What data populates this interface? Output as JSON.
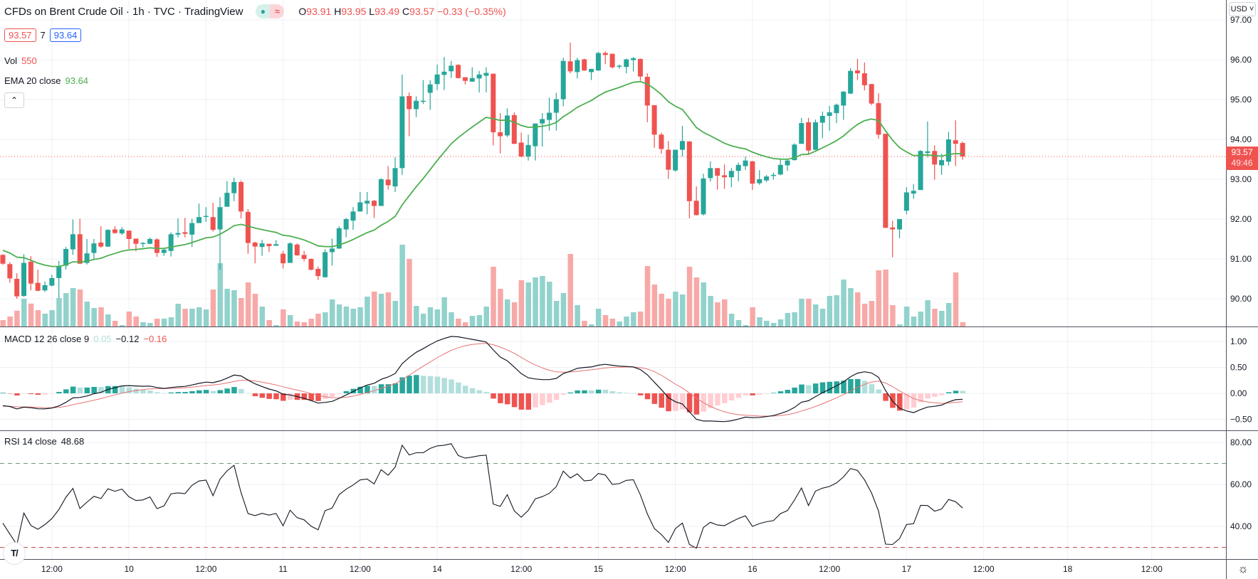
{
  "header": {
    "title": "CFDs on Brent Crude Oil · 1h · TVC · TradingView",
    "status_dot": "●",
    "status_approx": "≈",
    "o_label": "O",
    "o": "93.91",
    "h_label": "H",
    "h": "93.95",
    "l_label": "L",
    "l": "93.49",
    "c_label": "C",
    "c": "93.57",
    "change": "−0.33 (−0.35%)"
  },
  "bid_ask": {
    "bid": "93.57",
    "spread": "7",
    "ask": "93.64"
  },
  "vol_legend": {
    "label": "Vol",
    "value": "550"
  },
  "ema_legend": {
    "label": "EMA 20 close",
    "value": "93.64"
  },
  "macd_legend": {
    "label": "MACD 12 26 close 9",
    "hist": "0.05",
    "macd": "−0.12",
    "signal": "−0.16"
  },
  "rsi_legend": {
    "label": "RSI 14 close",
    "value": "48.68"
  },
  "currency_button": "USD ˅",
  "price_tag": {
    "price": "93.57",
    "countdown": "49:46"
  },
  "collapse_icon": "⌃",
  "settings_icon": "☼",
  "logo_text": "TV",
  "colors": {
    "up": "#26a69a",
    "down": "#ef5350",
    "ema": "#4caf50",
    "vol_up": "#92d2cc",
    "vol_down": "#f7a9a7",
    "macd_line": "#131722",
    "signal_line": "#e57373"
  },
  "chart_data": {
    "type": "candlestick",
    "title": "CFDs on Brent Crude Oil · 1h · TVC",
    "price_axis": {
      "ticks": [
        97,
        96,
        95,
        94,
        93,
        92,
        91,
        90
      ],
      "labels": [
        "97.00",
        "96.00",
        "95.00",
        "94.00",
        "93.00",
        "92.00",
        "91.00",
        "90.00"
      ],
      "range": [
        89.3,
        97.5
      ]
    },
    "macd_axis": {
      "ticks": [
        1,
        0.5,
        0,
        -0.5
      ],
      "labels": [
        "1.00",
        "0.50",
        "0.00",
        "−0.50"
      ]
    },
    "rsi_axis": {
      "ticks": [
        80,
        60,
        40
      ],
      "labels": [
        "80.00",
        "60.00",
        "40.00"
      ],
      "upper_band": 70,
      "lower_band": 30
    },
    "time_axis": {
      "labels": [
        "12:00",
        "10",
        "12:00",
        "11",
        "12:00",
        "14",
        "12:00",
        "15",
        "12:00",
        "16",
        "12:00",
        "17",
        "12:00",
        "18",
        "12:00"
      ],
      "bar_index": [
        7,
        18,
        29,
        40,
        51,
        62,
        74,
        85,
        96,
        107,
        118,
        129,
        140,
        152,
        164
      ]
    },
    "current_price": 93.57,
    "ema_period": 20,
    "ema_start": 91.25,
    "macd_params": {
      "fast": 12,
      "slow": 26,
      "signal": 9,
      "seed_fast": 90.95,
      "seed_slow": 91.2,
      "seed_signal": -0.25
    },
    "rsi_params": {
      "period": 14,
      "seed_gain": 0.09,
      "seed_loss": 0.11
    },
    "ohlcv_columns": [
      "open",
      "high",
      "low",
      "close",
      "volume"
    ],
    "ohlcv": [
      [
        91.1,
        91.12,
        90.85,
        90.88,
        810
      ],
      [
        90.87,
        90.92,
        90.4,
        90.51,
        1260
      ],
      [
        90.5,
        90.64,
        90.0,
        90.06,
        2000
      ],
      [
        90.07,
        91.12,
        90.05,
        90.9,
        3500
      ],
      [
        90.93,
        91.07,
        90.21,
        90.38,
        2900
      ],
      [
        90.4,
        90.73,
        90.19,
        90.2,
        2070
      ],
      [
        90.21,
        90.43,
        90.17,
        90.34,
        1620
      ],
      [
        90.33,
        90.6,
        90.31,
        90.52,
        2070
      ],
      [
        90.52,
        90.95,
        90.01,
        90.81,
        3600
      ],
      [
        90.83,
        91.3,
        90.73,
        91.25,
        4230
      ],
      [
        91.24,
        91.99,
        91.1,
        91.62,
        4860
      ],
      [
        91.62,
        92.01,
        90.87,
        90.88,
        4680
      ],
      [
        90.9,
        91.5,
        90.86,
        91.14,
        3150
      ],
      [
        91.15,
        91.5,
        90.98,
        91.39,
        2340
      ],
      [
        91.41,
        91.82,
        91.28,
        91.31,
        2430
      ],
      [
        91.31,
        91.74,
        91.3,
        91.73,
        1530
      ],
      [
        91.74,
        91.82,
        91.63,
        91.65,
        720
      ],
      [
        91.64,
        91.8,
        91.6,
        91.74,
        180
      ],
      [
        91.71,
        91.71,
        91.25,
        91.5,
        1890
      ],
      [
        91.51,
        91.51,
        91.19,
        91.38,
        1260
      ],
      [
        91.39,
        91.42,
        91.29,
        91.4,
        540
      ],
      [
        91.38,
        91.54,
        91.37,
        91.5,
        450
      ],
      [
        91.49,
        91.52,
        91.05,
        91.15,
        990
      ],
      [
        91.15,
        91.25,
        91.08,
        91.23,
        990
      ],
      [
        91.2,
        91.67,
        91.06,
        91.62,
        1170
      ],
      [
        91.61,
        92.02,
        91.54,
        91.65,
        2880
      ],
      [
        91.67,
        92.03,
        91.54,
        91.63,
        2250
      ],
      [
        91.61,
        92.01,
        91.3,
        91.9,
        2250
      ],
      [
        91.9,
        92.39,
        91.9,
        92.05,
        2430
      ],
      [
        92.06,
        92.3,
        91.93,
        92.08,
        2160
      ],
      [
        92.05,
        92.41,
        91.69,
        91.73,
        4680
      ],
      [
        91.74,
        92.55,
        90.73,
        92.3,
        8010
      ],
      [
        92.31,
        92.95,
        92.31,
        92.66,
        4770
      ],
      [
        92.65,
        93.04,
        92.45,
        92.93,
        4590
      ],
      [
        92.93,
        92.97,
        92.02,
        92.19,
        3600
      ],
      [
        92.18,
        92.25,
        91.13,
        91.4,
        5580
      ],
      [
        91.41,
        91.43,
        90.89,
        91.31,
        4140
      ],
      [
        91.3,
        91.48,
        91.08,
        91.39,
        2520
      ],
      [
        91.38,
        91.38,
        91.17,
        91.32,
        810
      ],
      [
        91.33,
        91.47,
        91.33,
        91.37,
        180
      ],
      [
        91.13,
        91.2,
        90.76,
        90.89,
        2160
      ],
      [
        90.9,
        91.42,
        90.9,
        91.39,
        1440
      ],
      [
        91.36,
        91.39,
        91.08,
        91.09,
        630
      ],
      [
        91.1,
        91.2,
        90.94,
        91.0,
        540
      ],
      [
        91.0,
        91.01,
        90.71,
        90.73,
        990
      ],
      [
        90.75,
        90.81,
        90.47,
        90.57,
        1620
      ],
      [
        90.54,
        91.24,
        90.53,
        91.17,
        1800
      ],
      [
        91.17,
        91.51,
        90.83,
        91.26,
        3420
      ],
      [
        91.26,
        91.82,
        91.25,
        91.77,
        2790
      ],
      [
        91.74,
        92.03,
        91.54,
        92.0,
        2520
      ],
      [
        91.96,
        92.3,
        91.73,
        92.19,
        2250
      ],
      [
        92.19,
        92.68,
        92.19,
        92.42,
        2430
      ],
      [
        92.39,
        92.68,
        92.12,
        92.46,
        3780
      ],
      [
        92.46,
        92.48,
        92.03,
        92.33,
        4410
      ],
      [
        92.33,
        93.03,
        92.33,
        93.0,
        4140
      ],
      [
        92.99,
        93.33,
        92.74,
        92.85,
        4320
      ],
      [
        92.82,
        93.55,
        92.68,
        93.28,
        3240
      ],
      [
        93.28,
        95.63,
        93.11,
        95.08,
        10350
      ],
      [
        95.09,
        95.18,
        94.08,
        94.76,
        8550
      ],
      [
        94.76,
        95.08,
        94.56,
        94.97,
        2610
      ],
      [
        94.95,
        95.49,
        94.89,
        94.97,
        1620
      ],
      [
        95.17,
        95.49,
        94.74,
        95.38,
        2430
      ],
      [
        95.39,
        95.88,
        95.24,
        95.63,
        2160
      ],
      [
        95.62,
        96.07,
        95.24,
        95.7,
        3690
      ],
      [
        95.71,
        95.97,
        95.54,
        95.85,
        1800
      ],
      [
        95.87,
        95.89,
        95.53,
        95.54,
        990
      ],
      [
        95.56,
        95.56,
        95.38,
        95.47,
        540
      ],
      [
        95.45,
        95.81,
        95.45,
        95.54,
        1350
      ],
      [
        95.53,
        95.72,
        95.18,
        95.63,
        1440
      ],
      [
        95.6,
        95.81,
        95.18,
        95.67,
        2520
      ],
      [
        95.65,
        95.65,
        93.85,
        94.18,
        7560
      ],
      [
        94.18,
        94.66,
        93.65,
        94.08,
        4770
      ],
      [
        94.1,
        94.78,
        94.06,
        94.6,
        3420
      ],
      [
        94.61,
        94.68,
        93.88,
        93.89,
        3060
      ],
      [
        93.92,
        94.17,
        93.55,
        93.57,
        5850
      ],
      [
        93.57,
        94.12,
        93.47,
        93.86,
        5580
      ],
      [
        93.83,
        94.4,
        93.47,
        94.4,
        6210
      ],
      [
        94.4,
        94.66,
        93.82,
        94.51,
        6390
      ],
      [
        94.49,
        95.05,
        94.22,
        94.67,
        5670
      ],
      [
        94.67,
        95.17,
        94.22,
        95.01,
        3240
      ],
      [
        95.01,
        96.05,
        94.83,
        95.97,
        4230
      ],
      [
        95.96,
        96.43,
        95.66,
        95.71,
        9180
      ],
      [
        95.69,
        96.05,
        95.53,
        95.99,
        2700
      ],
      [
        96.01,
        96.03,
        95.72,
        95.73,
        720
      ],
      [
        95.69,
        95.77,
        95.49,
        95.77,
        270
      ],
      [
        95.73,
        96.2,
        95.72,
        96.17,
        2250
      ],
      [
        96.17,
        96.21,
        95.89,
        96.12,
        1440
      ],
      [
        96.15,
        96.15,
        95.78,
        95.81,
        990
      ],
      [
        95.84,
        95.88,
        95.77,
        95.85,
        630
      ],
      [
        95.82,
        96.03,
        95.66,
        96.01,
        1260
      ],
      [
        95.99,
        96.07,
        95.71,
        96.04,
        1800
      ],
      [
        96.02,
        96.03,
        95.47,
        95.58,
        1890
      ],
      [
        95.57,
        95.66,
        94.43,
        94.85,
        7650
      ],
      [
        94.86,
        94.86,
        93.79,
        94.12,
        5310
      ],
      [
        94.12,
        94.17,
        93.64,
        93.76,
        4140
      ],
      [
        93.74,
        93.96,
        93.01,
        93.24,
        3510
      ],
      [
        93.22,
        93.74,
        93.19,
        93.74,
        4410
      ],
      [
        93.74,
        94.34,
        93.57,
        93.96,
        4050
      ],
      [
        93.95,
        93.95,
        92.02,
        92.45,
        7560
      ],
      [
        92.46,
        92.82,
        92.09,
        92.1,
        6210
      ],
      [
        92.12,
        93.14,
        92.09,
        93.02,
        5580
      ],
      [
        93.03,
        93.45,
        92.94,
        93.28,
        3870
      ],
      [
        93.28,
        93.28,
        92.74,
        93.09,
        3060
      ],
      [
        93.1,
        93.37,
        92.76,
        93.05,
        3420
      ],
      [
        93.05,
        93.28,
        92.8,
        93.21,
        1620
      ],
      [
        93.21,
        93.42,
        92.95,
        93.36,
        810
      ],
      [
        93.33,
        93.57,
        93.23,
        93.47,
        180
      ],
      [
        93.45,
        93.46,
        92.73,
        92.89,
        2430
      ],
      [
        92.9,
        93.23,
        92.86,
        93.0,
        1170
      ],
      [
        92.97,
        93.11,
        92.93,
        93.07,
        720
      ],
      [
        93.09,
        93.17,
        92.99,
        93.11,
        450
      ],
      [
        93.12,
        93.51,
        93.1,
        93.36,
        900
      ],
      [
        93.35,
        93.52,
        93.21,
        93.47,
        1710
      ],
      [
        93.48,
        93.9,
        93.47,
        93.87,
        1800
      ],
      [
        93.89,
        94.54,
        93.89,
        94.41,
        3510
      ],
      [
        94.43,
        94.54,
        93.64,
        93.72,
        3510
      ],
      [
        93.74,
        94.5,
        93.73,
        94.43,
        2790
      ],
      [
        94.42,
        94.7,
        94.03,
        94.59,
        2250
      ],
      [
        94.59,
        94.84,
        94.22,
        94.68,
        3870
      ],
      [
        94.66,
        94.9,
        94.41,
        94.87,
        3960
      ],
      [
        94.85,
        95.21,
        94.49,
        95.2,
        5940
      ],
      [
        95.15,
        95.79,
        95.14,
        95.72,
        4860
      ],
      [
        95.73,
        96.02,
        95.49,
        95.66,
        4320
      ],
      [
        95.66,
        95.93,
        95.23,
        95.36,
        2880
      ],
      [
        95.39,
        95.39,
        94.86,
        94.9,
        3240
      ],
      [
        94.91,
        95.16,
        94.02,
        94.12,
        7110
      ],
      [
        94.14,
        94.14,
        91.78,
        91.78,
        7200
      ],
      [
        91.79,
        91.96,
        91.04,
        91.74,
        2700
      ],
      [
        91.74,
        92.0,
        91.52,
        92.0,
        270
      ],
      [
        92.21,
        92.8,
        92.12,
        92.67,
        2520
      ],
      [
        92.64,
        92.88,
        92.51,
        92.71,
        1260
      ],
      [
        92.73,
        93.73,
        92.73,
        93.71,
        1890
      ],
      [
        93.66,
        94.45,
        93.55,
        93.7,
        3330
      ],
      [
        93.71,
        93.85,
        92.99,
        93.37,
        2250
      ],
      [
        93.35,
        93.64,
        93.11,
        93.48,
        1980
      ],
      [
        93.44,
        94.19,
        93.34,
        94.0,
        2970
      ],
      [
        93.98,
        94.48,
        93.33,
        93.89,
        6840
      ],
      [
        93.91,
        93.95,
        93.49,
        93.57,
        550
      ]
    ]
  }
}
